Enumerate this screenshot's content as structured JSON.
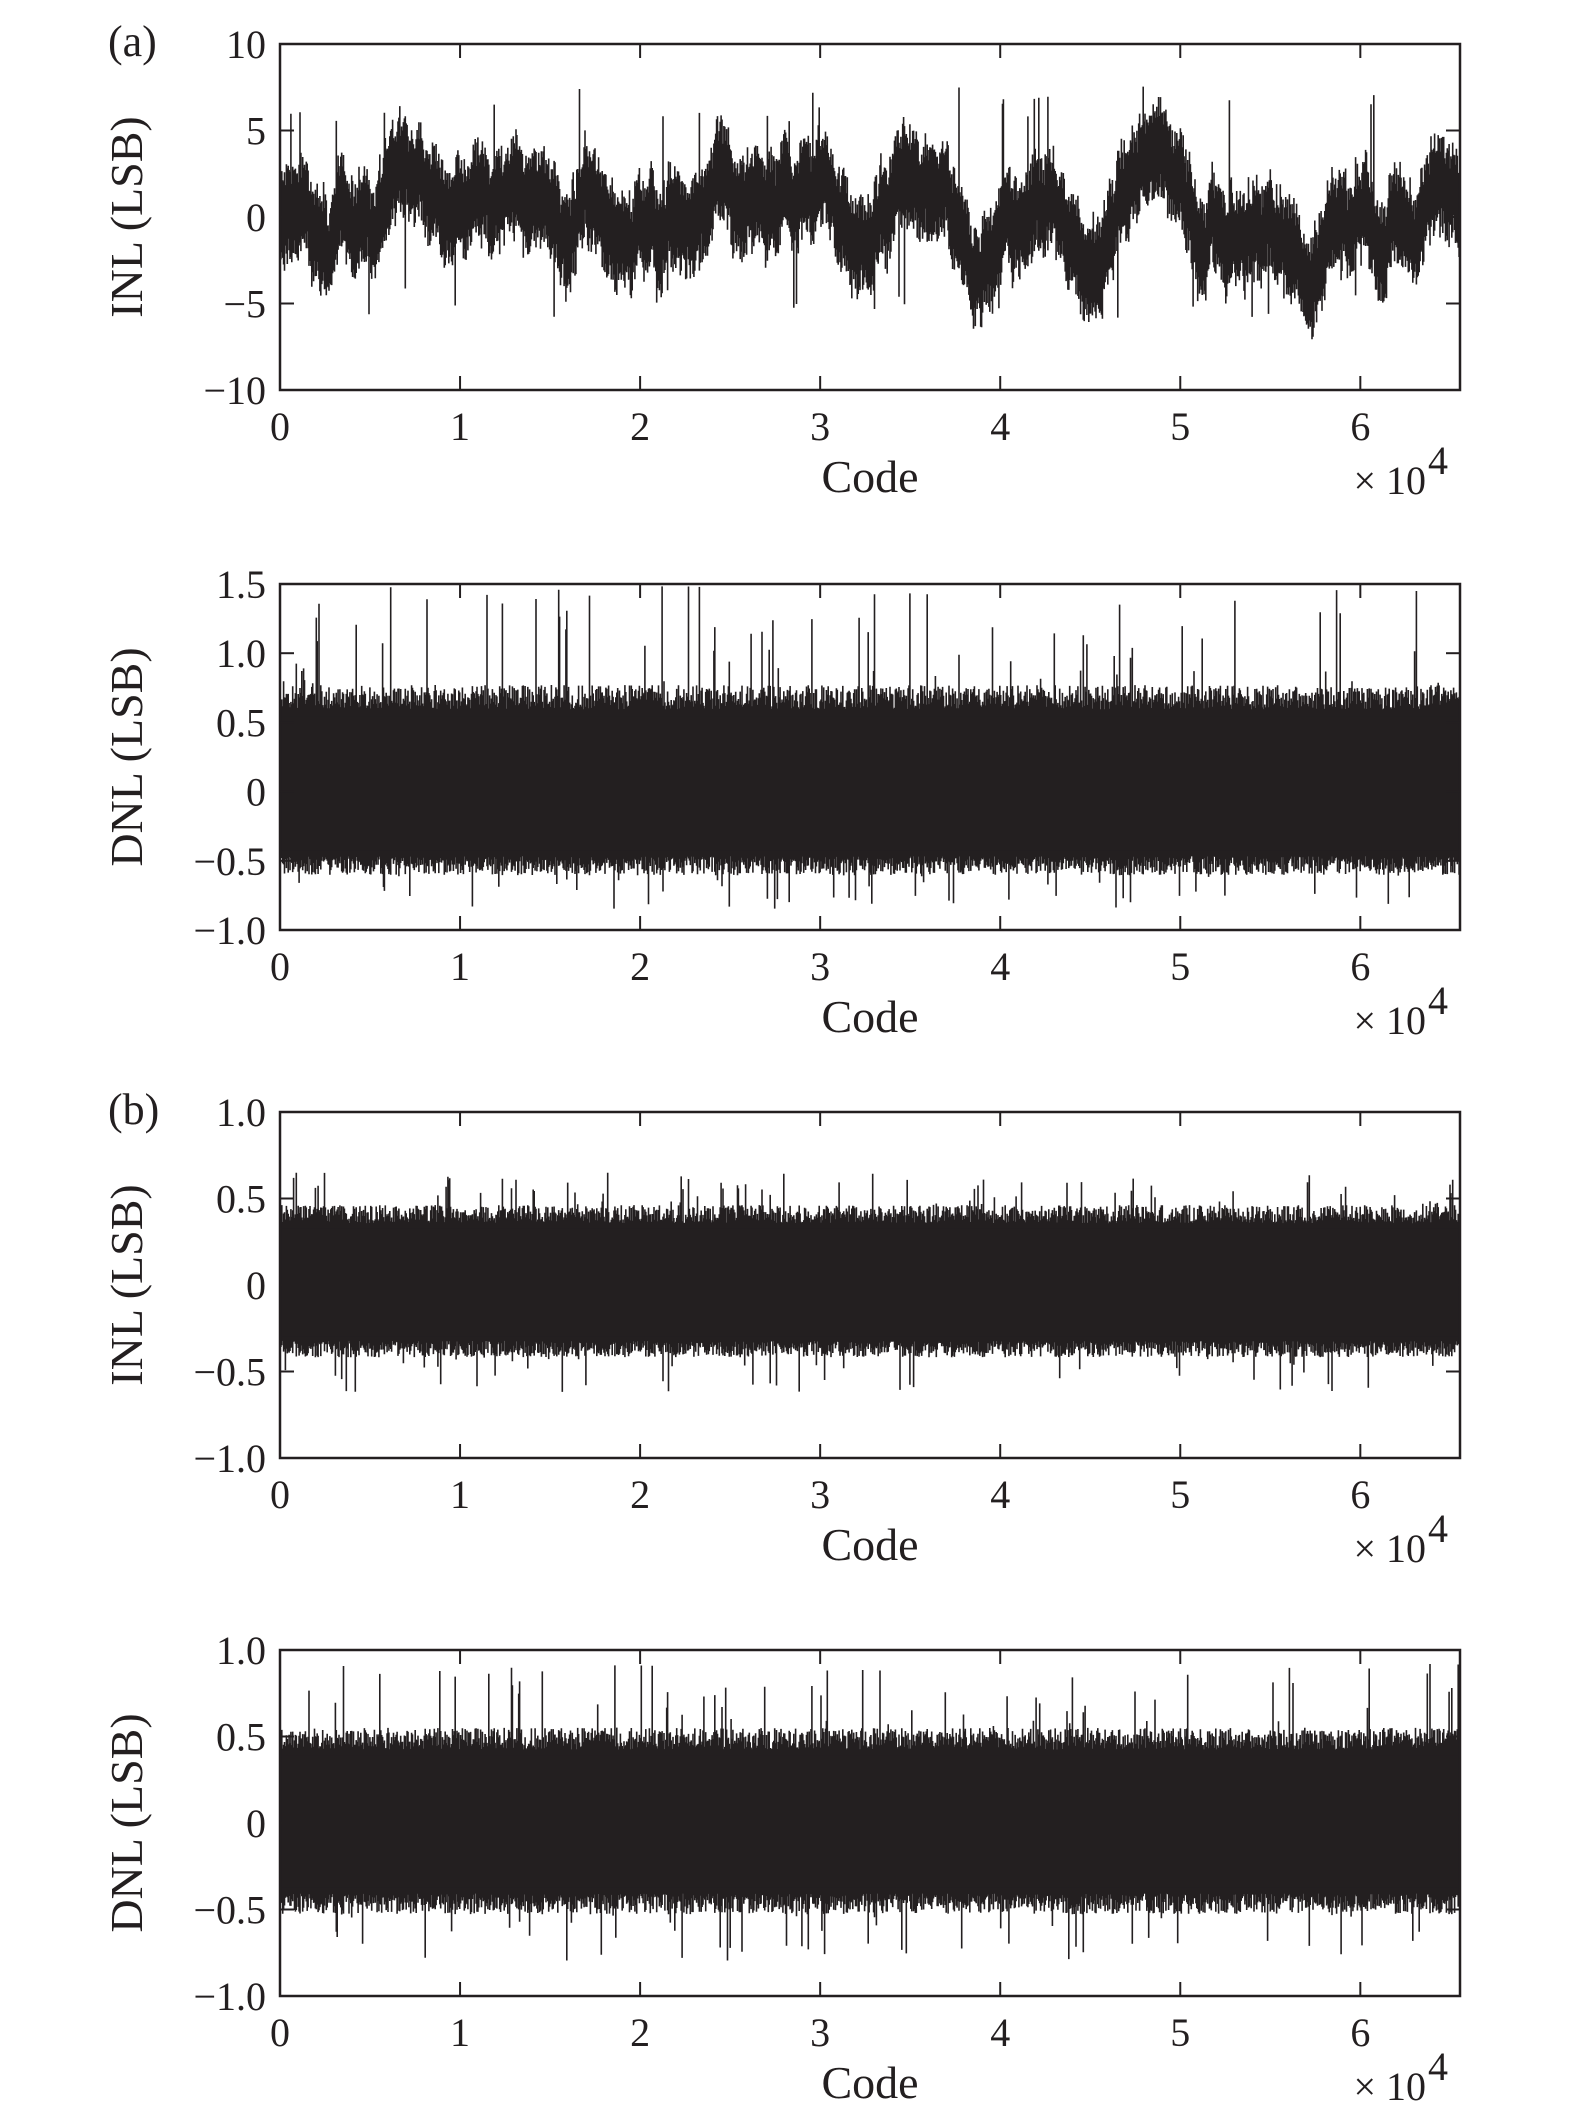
{
  "chart_data": [
    {
      "type": "line",
      "panel_label": "(a)",
      "xlabel": "Code",
      "ylabel": "INL (LSB)",
      "x_multiplier_label": "× 10",
      "x_multiplier_exp": "4",
      "xlim": [
        0,
        65536
      ],
      "ylim": [
        -10,
        10
      ],
      "xticks": [
        0,
        10000,
        20000,
        30000,
        40000,
        50000,
        60000
      ],
      "xtick_labels": [
        "0",
        "1",
        "2",
        "3",
        "4",
        "5",
        "6"
      ],
      "yticks": [
        -10,
        -5,
        0,
        5,
        10
      ],
      "ytick_labels": [
        "−10",
        "−5",
        "0",
        "5",
        "10"
      ],
      "noise": {
        "kind": "walk",
        "band": [
          -3.0,
          3.5
        ],
        "spike_max": 7.6,
        "spike_min": -5.9
      },
      "series": [
        {
          "values_note": "",
          "color": "#231f20"
        }
      ]
    },
    {
      "type": "line",
      "panel_label": "",
      "xlabel": "Code",
      "ylabel": "DNL (LSB)",
      "x_multiplier_label": "× 10",
      "x_multiplier_exp": "4",
      "xlim": [
        0,
        65536
      ],
      "ylim": [
        -1.0,
        1.5
      ],
      "xticks": [
        0,
        10000,
        20000,
        30000,
        40000,
        50000,
        60000
      ],
      "xtick_labels": [
        "0",
        "1",
        "2",
        "3",
        "4",
        "5",
        "6"
      ],
      "yticks": [
        -1.0,
        -0.5,
        0,
        0.5,
        1.0,
        1.5
      ],
      "ytick_labels": [
        "−1.0",
        "−0.5",
        "0",
        "0.5",
        "1.0",
        "1.5"
      ],
      "noise": {
        "kind": "band",
        "band": [
          -0.55,
          0.7
        ],
        "spike_max": 1.5,
        "spike_min": -0.85
      },
      "series": [
        {
          "values_note": "",
          "color": "#231f20"
        }
      ]
    },
    {
      "type": "line",
      "panel_label": "(b)",
      "xlabel": "Code",
      "ylabel": "INL (LSB)",
      "x_multiplier_label": "× 10",
      "x_multiplier_exp": "4",
      "xlim": [
        0,
        65536
      ],
      "ylim": [
        -1.0,
        1.0
      ],
      "xticks": [
        0,
        10000,
        20000,
        30000,
        40000,
        50000,
        60000
      ],
      "xtick_labels": [
        "0",
        "1",
        "2",
        "3",
        "4",
        "5",
        "6"
      ],
      "yticks": [
        -1.0,
        -0.5,
        0,
        0.5,
        1.0
      ],
      "ytick_labels": [
        "−1.0",
        "−0.5",
        "0",
        "0.5",
        "1.0"
      ],
      "noise": {
        "kind": "band",
        "band": [
          -0.38,
          0.42
        ],
        "spike_max": 0.65,
        "spike_min": -0.62
      },
      "series": [
        {
          "values_note": "",
          "color": "#231f20"
        }
      ]
    },
    {
      "type": "line",
      "panel_label": "",
      "xlabel": "Code",
      "ylabel": "DNL (LSB)",
      "x_multiplier_label": "× 10",
      "x_multiplier_exp": "4",
      "xlim": [
        0,
        65536
      ],
      "ylim": [
        -1.0,
        1.0
      ],
      "xticks": [
        0,
        10000,
        20000,
        30000,
        40000,
        50000,
        60000
      ],
      "xtick_labels": [
        "0",
        "1",
        "2",
        "3",
        "4",
        "5",
        "6"
      ],
      "yticks": [
        -1.0,
        -0.5,
        0,
        0.5,
        1.0
      ],
      "ytick_labels": [
        "−1.0",
        "−0.5",
        "0",
        "0.5",
        "1.0"
      ],
      "noise": {
        "kind": "band",
        "band": [
          -0.48,
          0.5
        ],
        "spike_max": 0.92,
        "spike_min": -0.8
      },
      "series": [
        {
          "values_note": "",
          "color": "#231f20"
        }
      ]
    }
  ]
}
